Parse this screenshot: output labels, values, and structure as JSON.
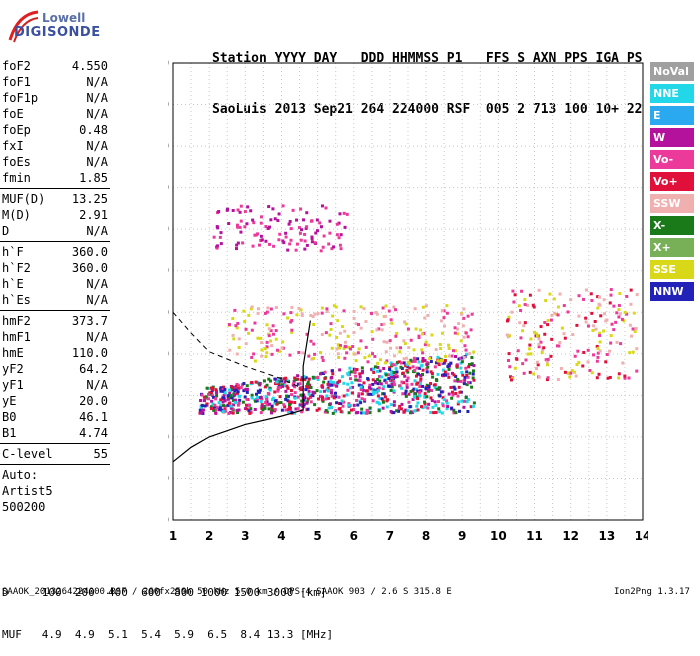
{
  "logo": {
    "line1": "Lowell",
    "line2": "DIGISONDE"
  },
  "header": {
    "row1": "Station YYYY DAY   DDD HHMMSS P1   FFS S AXN PPS IGA PS",
    "row2": "SaoLuis 2013 Sep21 264 224000 RSF  005 2 713 100 10+ 22"
  },
  "params": {
    "group1": [
      {
        "label": "foF2",
        "value": "4.550"
      },
      {
        "label": "foF1",
        "value": "N/A"
      },
      {
        "label": "foF1p",
        "value": "N/A"
      },
      {
        "label": "foE",
        "value": "N/A"
      },
      {
        "label": "foEp",
        "value": "0.48"
      },
      {
        "label": "fxI",
        "value": "N/A"
      },
      {
        "label": "foEs",
        "value": "N/A"
      },
      {
        "label": "fmin",
        "value": "1.85"
      }
    ],
    "group2": [
      {
        "label": "MUF(D)",
        "value": "13.25"
      },
      {
        "label": "M(D)",
        "value": "2.91"
      },
      {
        "label": "D",
        "value": "N/A"
      }
    ],
    "group3": [
      {
        "label": "h`F",
        "value": "360.0"
      },
      {
        "label": "h`F2",
        "value": "360.0"
      },
      {
        "label": "h`E",
        "value": "N/A"
      },
      {
        "label": "h`Es",
        "value": "N/A"
      }
    ],
    "group4": [
      {
        "label": "hmF2",
        "value": "373.7"
      },
      {
        "label": "hmF1",
        "value": "N/A"
      },
      {
        "label": "hmE",
        "value": "110.0"
      },
      {
        "label": "yF2",
        "value": "64.2"
      },
      {
        "label": "yF1",
        "value": "N/A"
      },
      {
        "label": "yE",
        "value": "20.0"
      },
      {
        "label": "B0",
        "value": "46.1"
      },
      {
        "label": "B1",
        "value": "4.74"
      }
    ],
    "group5": [
      {
        "label": "C-level",
        "value": "55"
      }
    ],
    "auto": {
      "line1": "Auto:",
      "line2": "Artist5",
      "line3": "500200"
    }
  },
  "legend": [
    {
      "label": "NoVal",
      "color": "#a0a0a0"
    },
    {
      "label": "NNE",
      "color": "#22d8e8"
    },
    {
      "label": "E",
      "color": "#2aa8f0"
    },
    {
      "label": "W",
      "color": "#b4119c"
    },
    {
      "label": "Vo-",
      "color": "#ec3a9a"
    },
    {
      "label": "Vo+",
      "color": "#e0103a"
    },
    {
      "label": "SSW",
      "color": "#f0b0b0"
    },
    {
      "label": "X-",
      "color": "#1a7a1a"
    },
    {
      "label": "X+",
      "color": "#78b058"
    },
    {
      "label": "SSE",
      "color": "#d8d818"
    },
    {
      "label": "NNW",
      "color": "#2222b8"
    }
  ],
  "chart_data": {
    "type": "scatter",
    "title": "",
    "xlabel": "",
    "ylabel": "",
    "xlim": [
      1,
      14
    ],
    "ylim": [
      80,
      1280
    ],
    "y_scale": "log-like (ionogram virtual height)",
    "x_ticks": [
      "1",
      "2",
      "3",
      "4",
      "5",
      "6",
      "7",
      "8",
      "9",
      "10",
      "11",
      "12",
      "13",
      "14"
    ],
    "y_ticks": [
      80,
      200,
      300,
      400,
      500,
      600,
      700,
      800,
      900,
      1000,
      1100,
      1280
    ],
    "grid": true,
    "clusters": [
      {
        "name": "F-trace O",
        "x_range": [
          1.7,
          9.3
        ],
        "y_range": [
          360,
          520
        ],
        "colors": [
          "#e0103a",
          "#b4119c",
          "#2222b8",
          "#22d8e8",
          "#1a7a1a",
          "#ec3a9a"
        ]
      },
      {
        "name": "F-trace upper",
        "x_range": [
          2.5,
          9.3
        ],
        "y_range": [
          480,
          620
        ],
        "colors": [
          "#d8d818",
          "#f0b0b0",
          "#ec3a9a"
        ]
      },
      {
        "name": "F2 multihop",
        "x_range": [
          2.0,
          5.8
        ],
        "y_range": [
          750,
          860
        ],
        "colors": [
          "#b4119c",
          "#ec3a9a"
        ]
      },
      {
        "name": "Far range",
        "x_range": [
          10.2,
          13.8
        ],
        "y_range": [
          440,
          660
        ],
        "colors": [
          "#ec3a9a",
          "#e0103a",
          "#d8d818",
          "#f0b0b0"
        ]
      }
    ],
    "profile_curve_solid": [
      [
        1.0,
        240
      ],
      [
        1.5,
        275
      ],
      [
        2.0,
        300
      ],
      [
        3.0,
        330
      ],
      [
        4.0,
        350
      ],
      [
        4.6,
        365
      ],
      [
        4.6,
        470
      ],
      [
        4.8,
        580
      ]
    ],
    "profile_curve_dashed": [
      [
        1.0,
        600
      ],
      [
        1.5,
        550
      ],
      [
        2.0,
        505
      ],
      [
        3.0,
        470
      ],
      [
        4.0,
        440
      ],
      [
        4.5,
        420
      ]
    ]
  },
  "muf_table": {
    "row1": "D     100  200  400  600  800 1000 1500 3000 [km]",
    "row2": "MUF   4.9  4.9  5.1  5.4  5.9  6.5  8.4 13.3 [MHz]"
  },
  "footer": {
    "file": "SAAOK_2013264224000.RSF / 260fx256h 50 kHz 5.0 km / DPS-4 SAAOK 903 / 2.6 S 315.8 E",
    "version": "Ion2Png 1.3.17"
  }
}
